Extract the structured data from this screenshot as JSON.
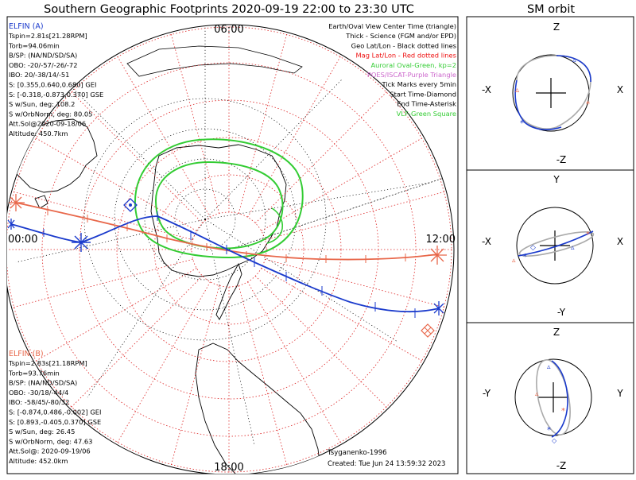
{
  "title": "Southern Geographic Footprints 2020-09-19 22:00 to 23:30 UTC",
  "sm_title": "SM orbit",
  "time_labels": {
    "top": "06:00",
    "left": "00:00",
    "right": "12:00",
    "bottom": "18:00"
  },
  "elfin_a": {
    "name": "ELFIN (A)",
    "color": "#1a3acc",
    "lines": [
      "Tspin=2.81s[21.28RPM]",
      "Torb=94.06min",
      "B/SP: (NA/ND/SD/SA)",
      "OBO: -20/-57/-26/-72",
      "IBO: 20/-38/14/-51",
      "S: [0.355,0.640,0.680] GEI",
      "S: [-0.318,-0.873,0.370] GSE",
      "S w/Sun, deg: 108.2",
      "S w/OrbNorm, deg: 80.05",
      "Att.Sol@2020-09-18/06",
      "Altitude: 450.7km"
    ]
  },
  "elfin_b": {
    "name": "ELFIN (B)",
    "color": "#e8674a",
    "lines": [
      "Tspin=2.83s[21.18RPM]",
      "Torb=93.76min",
      "B/SP: (NA/ND/SD/SA)",
      "OBO: -30/18/-44/4",
      "IBO: -58/45/-80/32",
      "S: [-0.874,0.486,-0.002] GEI",
      "S: [0.893,-0.405,0.370] GSE",
      "S w/Sun, deg: 26.45",
      "S w/OrbNorm, deg: 47.63",
      "Att.Sol@: 2020-09-19/06",
      "Altitude: 452.0km"
    ]
  },
  "legend": [
    {
      "text": "Earth/Oval View Center Time (triangle)",
      "color": "#000000"
    },
    {
      "text": "Thick - Science (FGM and/or EPD)",
      "color": "#000000"
    },
    {
      "text": "Geo Lat/Lon - Black dotted lines",
      "color": "#000000"
    },
    {
      "text": "Mag Lat/Lon - Red dotted lines",
      "color": "#ee1111"
    },
    {
      "text": "Auroral Oval-Green, kp=2",
      "color": "#33cc33"
    },
    {
      "text": "POES/ISCAT-Purple Triangle",
      "color": "#cc66cc"
    },
    {
      "text": "Tick Marks every 5min",
      "color": "#000000"
    },
    {
      "text": "Start Time-Diamond",
      "color": "#000000"
    },
    {
      "text": "End Time-Asterisk",
      "color": "#000000"
    },
    {
      "text": "VLF-Green Square",
      "color": "#33cc33"
    }
  ],
  "model_label": "Tsyganenko-1996",
  "created_label": "Created: Tue Jun 24 13:59:32 2023",
  "sm_panels": [
    {
      "top": "Z",
      "bottom": "-Z",
      "left": "-X",
      "right": "X"
    },
    {
      "top": "Y",
      "bottom": "-Y",
      "left": "-X",
      "right": "X"
    },
    {
      "top": "Z",
      "bottom": "-Z",
      "left": "-Y",
      "right": "Y"
    }
  ],
  "colors": {
    "orbit_a": "#1a3acc",
    "orbit_b": "#e8674a",
    "aurora": "#33cc33",
    "mag_grid": "#dd2222",
    "sm_gray": "#aaaaaa"
  }
}
